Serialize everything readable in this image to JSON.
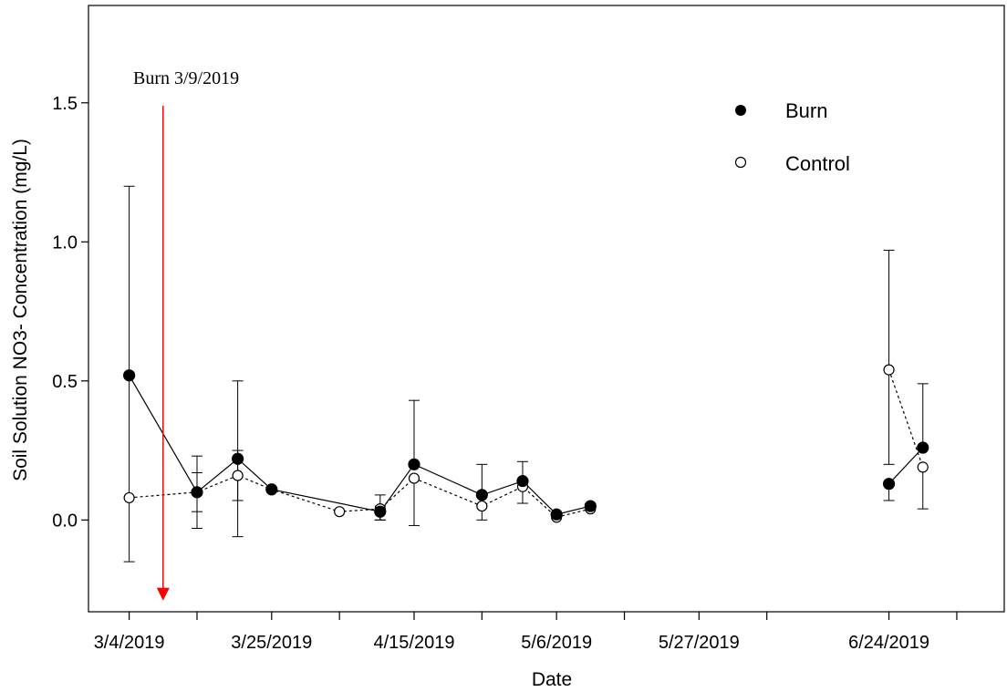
{
  "chart_data": {
    "type": "line",
    "xlabel": "Date",
    "ylabel": "Soil Solution NO3- Concentration (mg/L)",
    "xlim": [
      "2019-02-26",
      "2019-07-11"
    ],
    "ylim": [
      -0.33,
      1.85
    ],
    "x_ticks": [
      "2019-03-04",
      "2019-03-14",
      "2019-03-25",
      "2019-04-04",
      "2019-04-15",
      "2019-04-25",
      "2019-05-06",
      "2019-05-16",
      "2019-05-27",
      "2019-06-06",
      "2019-06-24",
      "2019-07-04"
    ],
    "x_tick_labels": [
      "3/4/2019",
      "",
      "3/25/2019",
      "",
      "4/15/2019",
      "",
      "5/6/2019",
      "",
      "5/27/2019",
      "",
      "6/24/2019",
      ""
    ],
    "y_ticks": [
      0.0,
      0.5,
      1.0,
      1.5
    ],
    "y_tick_labels": [
      "0.0",
      "0.5",
      "1.0",
      "1.5"
    ],
    "grid": false,
    "legend_position": "top-right",
    "series": [
      {
        "name": "Burn",
        "marker": "filled-circle",
        "line_style": "solid",
        "color": "#000000",
        "points": [
          {
            "x": "2019-03-04",
            "y": 0.52,
            "err_low": -0.15,
            "err_high": 1.2
          },
          {
            "x": "2019-03-14",
            "y": 0.1,
            "err_low": 0.03,
            "err_high": 0.17
          },
          {
            "x": "2019-03-20",
            "y": 0.22,
            "err_low": -0.06,
            "err_high": 0.5
          },
          {
            "x": "2019-03-25",
            "y": 0.11,
            "err_low": null,
            "err_high": null
          },
          {
            "x": "2019-04-10",
            "y": 0.03,
            "err_low": 0.0,
            "err_high": 0.05
          },
          {
            "x": "2019-04-15",
            "y": 0.2,
            "err_low": null,
            "err_high": 0.43
          },
          {
            "x": "2019-04-25",
            "y": 0.09,
            "err_low": null,
            "err_high": 0.2
          },
          {
            "x": "2019-05-01",
            "y": 0.14,
            "err_low": null,
            "err_high": 0.21
          },
          {
            "x": "2019-05-06",
            "y": 0.02,
            "err_low": null,
            "err_high": null
          },
          {
            "x": "2019-05-11",
            "y": 0.05,
            "err_low": null,
            "err_high": null
          },
          {
            "x": "2019-06-24",
            "y": 0.13,
            "err_low": 0.07,
            "err_high": null
          },
          {
            "x": "2019-06-29",
            "y": 0.26,
            "err_low": null,
            "err_high": 0.49
          }
        ]
      },
      {
        "name": "Control",
        "marker": "open-circle",
        "line_style": "dotted",
        "color": "#000000",
        "points": [
          {
            "x": "2019-03-04",
            "y": 0.08,
            "err_low": null,
            "err_high": null
          },
          {
            "x": "2019-03-14",
            "y": 0.1,
            "err_low": -0.03,
            "err_high": 0.23
          },
          {
            "x": "2019-03-20",
            "y": 0.16,
            "err_low": 0.07,
            "err_high": 0.25
          },
          {
            "x": "2019-03-25",
            "y": 0.11,
            "err_low": null,
            "err_high": null
          },
          {
            "x": "2019-04-04",
            "y": 0.03,
            "err_low": null,
            "err_high": null
          },
          {
            "x": "2019-04-10",
            "y": 0.04,
            "err_low": 0.0,
            "err_high": 0.09
          },
          {
            "x": "2019-04-15",
            "y": 0.15,
            "err_low": -0.02,
            "err_high": null
          },
          {
            "x": "2019-04-25",
            "y": 0.05,
            "err_low": 0.0,
            "err_high": null
          },
          {
            "x": "2019-05-01",
            "y": 0.12,
            "err_low": 0.06,
            "err_high": null
          },
          {
            "x": "2019-05-06",
            "y": 0.01,
            "err_low": null,
            "err_high": null
          },
          {
            "x": "2019-05-11",
            "y": 0.04,
            "err_low": null,
            "err_high": null
          },
          {
            "x": "2019-06-24",
            "y": 0.54,
            "err_low": 0.2,
            "err_high": 0.97
          },
          {
            "x": "2019-06-29",
            "y": 0.19,
            "err_low": 0.04,
            "err_high": null
          }
        ]
      }
    ],
    "annotations": [
      {
        "text": "Burn 3/9/2019",
        "x": "2019-03-09",
        "type": "arrow",
        "color": "#ff0000",
        "y_from": 1.49,
        "y_to": -0.29
      }
    ]
  }
}
